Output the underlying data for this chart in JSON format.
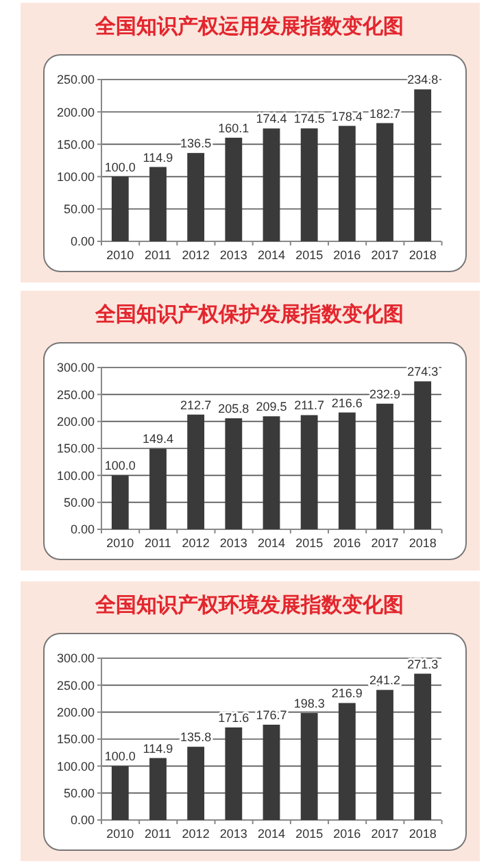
{
  "chart_data": [
    {
      "type": "bar",
      "title": "全国知识产权运用发展指数变化图",
      "categories": [
        "2010",
        "2011",
        "2012",
        "2013",
        "2014",
        "2015",
        "2016",
        "2017",
        "2018"
      ],
      "values": [
        100.0,
        114.9,
        136.5,
        160.1,
        174.4,
        174.5,
        178.4,
        182.7,
        234.8
      ],
      "value_labels": [
        "100.0",
        "114.9",
        "136.5",
        "160.1",
        "174.4",
        "174.5",
        "178.4",
        "182.7",
        "234.8"
      ],
      "color": "#3a3a3a",
      "ylim": [
        0,
        250
      ],
      "yticks": [
        {
          "value": 0,
          "label": "0.00"
        },
        {
          "value": 50,
          "label": "50.00"
        },
        {
          "value": 100,
          "label": "100.00"
        },
        {
          "value": 150,
          "label": "150.00"
        },
        {
          "value": 200,
          "label": "200.00"
        },
        {
          "value": 250,
          "label": "250.00"
        }
      ],
      "grid": "y"
    },
    {
      "type": "bar",
      "title": "全国知识产权保护发展指数变化图",
      "categories": [
        "2010",
        "2011",
        "2012",
        "2013",
        "2014",
        "2015",
        "2016",
        "2017",
        "2018"
      ],
      "values": [
        100.0,
        149.4,
        212.7,
        205.8,
        209.5,
        211.7,
        216.6,
        232.9,
        274.3
      ],
      "value_labels": [
        "100.0",
        "149.4",
        "212.7",
        "205.8",
        "209.5",
        "211.7",
        "216.6",
        "232.9",
        "274.3"
      ],
      "color": "#3a3a3a",
      "ylim": [
        0,
        300
      ],
      "yticks": [
        {
          "value": 0,
          "label": "0.00"
        },
        {
          "value": 50,
          "label": "50.00"
        },
        {
          "value": 100,
          "label": "100.00"
        },
        {
          "value": 150,
          "label": "150.00"
        },
        {
          "value": 200,
          "label": "200.00"
        },
        {
          "value": 250,
          "label": "250.00"
        },
        {
          "value": 300,
          "label": "300.00"
        }
      ],
      "grid": "y"
    },
    {
      "type": "bar",
      "title": "全国知识产权环境发展指数变化图",
      "categories": [
        "2010",
        "2011",
        "2012",
        "2013",
        "2014",
        "2015",
        "2016",
        "2017",
        "2018"
      ],
      "values": [
        100.0,
        114.9,
        135.8,
        171.6,
        176.7,
        198.3,
        216.9,
        241.2,
        271.3
      ],
      "value_labels": [
        "100.0",
        "114.9",
        "135.8",
        "171.6",
        "176.7",
        "198.3",
        "216.9",
        "241.2",
        "271.3"
      ],
      "color": "#3a3a3a",
      "ylim": [
        0,
        300
      ],
      "yticks": [
        {
          "value": 0,
          "label": "0.00"
        },
        {
          "value": 50,
          "label": "50.00"
        },
        {
          "value": 100,
          "label": "100.00"
        },
        {
          "value": 150,
          "label": "150.00"
        },
        {
          "value": 200,
          "label": "200.00"
        },
        {
          "value": 250,
          "label": "250.00"
        },
        {
          "value": 300,
          "label": "300.00"
        }
      ],
      "grid": "y"
    }
  ]
}
